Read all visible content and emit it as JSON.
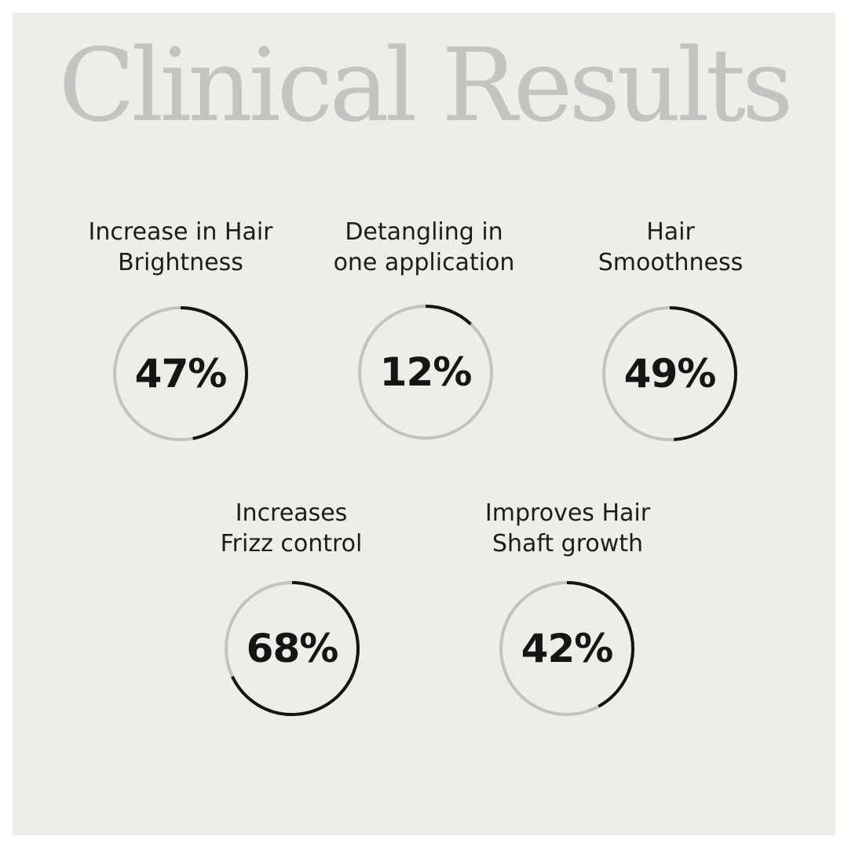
{
  "title": "Clinical Results",
  "colors": {
    "background": "#eeede8",
    "track": "#c2c2c0",
    "progress": "#141414",
    "title": "#c3c3c1"
  },
  "stats": [
    {
      "label_line1": "Increase in Hair",
      "label_line2": "Brightness",
      "value_text": "47%",
      "progress": 0.47
    },
    {
      "label_line1": "Detangling in",
      "label_line2": "one application",
      "value_text": "12%",
      "progress": 0.12
    },
    {
      "label_line1": "Hair",
      "label_line2": "Smoothness",
      "value_text": "49%",
      "progress": 0.49
    },
    {
      "label_line1": "Increases",
      "label_line2": "Frizz control",
      "value_text": "68%",
      "progress": 0.68
    },
    {
      "label_line1": "Improves Hair",
      "label_line2": "Shaft growth",
      "value_text": "42%",
      "progress": 0.42
    }
  ]
}
